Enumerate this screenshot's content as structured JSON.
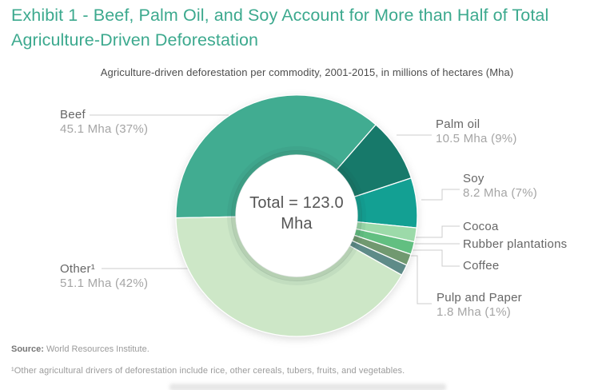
{
  "colors": {
    "accent_title": "#3CA98E",
    "leader_line": "#cccccc",
    "label_text": "#666666",
    "label_value": "#a5a5a5",
    "donut_hole": "#ffffff"
  },
  "title": "Exhibit 1 - Beef, Palm Oil, and Soy Account for More than Half of Total Agriculture-Driven Deforestation",
  "subtitle": "Agriculture-driven deforestation per commodity, 2001-2015, in millions of hectares (Mha)",
  "source": {
    "prefix": "Source:",
    "text": "World Resources Institute."
  },
  "footnote": "¹Other agricultural drivers of deforestation include rice, other cereals, tubers, fruits, and vegetables.",
  "chart_data": {
    "type": "pie",
    "donut": true,
    "title": "Agriculture-driven deforestation per commodity, 2001-2015, in millions of hectares (Mha)",
    "period": "2001-2015",
    "unit": "Mha",
    "total_mha": 123.0,
    "center_label": {
      "line1": "Total = 123.0",
      "line2": "Mha"
    },
    "start_angle_deg": 269,
    "legend_position": "none (direct labels with leader lines)",
    "note": "Values for Cocoa, Rubber plantations and Coffee are not labeled in the chart; their value_mha is estimated from arc size.",
    "slices": [
      {
        "id": "beef",
        "label": "Beef",
        "sublabel": "45.1 Mha (37%)",
        "value_mha": 45.1,
        "percent": 37,
        "value_shown": true,
        "color": "#41AC91"
      },
      {
        "id": "palm-oil",
        "label": "Palm oil",
        "sublabel": "10.5 Mha (9%)",
        "value_mha": 10.5,
        "percent": 9,
        "value_shown": true,
        "color": "#17796A"
      },
      {
        "id": "soy",
        "label": "Soy",
        "sublabel": "8.2 Mha (7%)",
        "value_mha": 8.2,
        "percent": 7,
        "value_shown": true,
        "color": "#13A093"
      },
      {
        "id": "cocoa",
        "label": "Cocoa",
        "sublabel": "",
        "value_mha": 2.3,
        "value_shown": false,
        "color": "#9CDAA9"
      },
      {
        "id": "rubber",
        "label": "Rubber plantations",
        "sublabel": "",
        "value_mha": 2.1,
        "value_shown": false,
        "color": "#62BF81"
      },
      {
        "id": "coffee",
        "label": "Coffee",
        "sublabel": "",
        "value_mha": 1.9,
        "value_shown": false,
        "color": "#719970"
      },
      {
        "id": "pulp",
        "label": "Pulp and Paper",
        "sublabel": "1.8 Mha (1%)",
        "value_mha": 1.8,
        "percent": 1,
        "value_shown": true,
        "color": "#5E8B88"
      },
      {
        "id": "other",
        "label": "Other¹",
        "sublabel": "51.1 Mha (42%)",
        "value_mha": 51.1,
        "percent": 42,
        "value_shown": true,
        "color": "#CDE7C7"
      }
    ]
  }
}
